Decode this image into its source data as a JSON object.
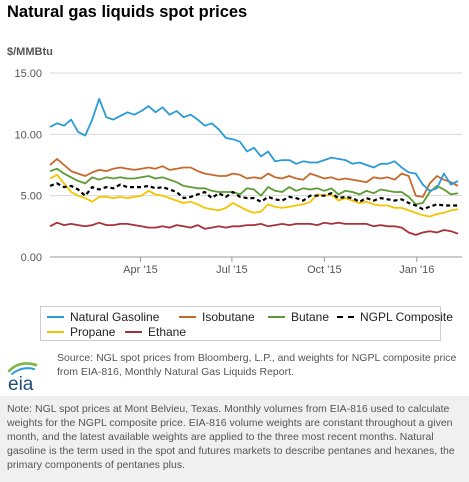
{
  "header": {
    "title": "Natural gas liquids spot prices",
    "unit": "$/MMBtu"
  },
  "source": "Source: NGL spot prices from Bloomberg, L.P., and weights for NGPL composite price from EIA-816, Monthly Natural Gas Liquids Report.",
  "note": "Note: NGL spot prices at Mont Belvieu, Texas. Monthly volumes from EIA-816 used to calculate weights for the NGPL composite price. EIA-816 volume weights are constant throughout a given month, and the latest available weights are applied to the three most recent months. Natural gasoline is the term used in the spot and futures markets to describe pentanes and hexanes, the primary components of pentanes plus.",
  "logo": {
    "text": "eia",
    "icon": "eia-logo-icon"
  },
  "colors": {
    "natural_gasoline": "#2a9bd8",
    "isobutane": "#c8692c",
    "butane": "#5d9b35",
    "ngpl_composite": "#000000",
    "propane": "#f5c400",
    "ethane": "#a63239",
    "grid": "#d9d9d9"
  },
  "chart_data": {
    "type": "line",
    "title": "Natural gas liquids spot prices",
    "ylabel": "$/MMBtu",
    "ylim": [
      0,
      15
    ],
    "yticks": [
      "0.00",
      "5.00",
      "10.00",
      "15.00"
    ],
    "xticks": [
      {
        "label": "Apr '15",
        "day": 90
      },
      {
        "label": "Jul '15",
        "day": 181
      },
      {
        "label": "Oct '15",
        "day": 273
      },
      {
        "label": "Jan '16",
        "day": 365
      }
    ],
    "xdomain": [
      0,
      410
    ],
    "grid": true,
    "legend_position": "bottom",
    "x": [
      0,
      7,
      14,
      21,
      28,
      35,
      42,
      49,
      56,
      63,
      70,
      77,
      84,
      91,
      98,
      105,
      112,
      119,
      126,
      133,
      140,
      147,
      154,
      161,
      168,
      175,
      182,
      189,
      196,
      203,
      210,
      217,
      224,
      231,
      238,
      245,
      252,
      259,
      266,
      273,
      280,
      287,
      294,
      301,
      308,
      315,
      322,
      329,
      336,
      343,
      350,
      357,
      364,
      371,
      378,
      385,
      392,
      399,
      406
    ],
    "series": [
      {
        "name": "Natural Gasoline",
        "key": "natural_gasoline",
        "dash": false,
        "values": [
          10.6,
          10.9,
          10.7,
          11.2,
          10.2,
          9.9,
          11.2,
          12.9,
          11.4,
          11.2,
          11.5,
          11.8,
          11.6,
          11.9,
          12.3,
          11.8,
          12.2,
          11.6,
          11.9,
          11.4,
          11.6,
          11.2,
          10.7,
          10.9,
          10.4,
          9.7,
          9.6,
          9.4,
          8.6,
          8.9,
          8.2,
          8.6,
          7.8,
          7.9,
          7.9,
          7.6,
          7.8,
          7.7,
          7.7,
          7.9,
          8.1,
          8.0,
          7.9,
          7.6,
          7.7,
          7.5,
          7.3,
          7.6,
          7.6,
          7.8,
          7.3,
          6.9,
          6.8,
          5.9,
          5.4,
          5.6,
          6.8,
          5.9,
          6.2
        ]
      },
      {
        "name": "Isobutane",
        "key": "isobutane",
        "dash": false,
        "values": [
          7.5,
          8.0,
          7.5,
          7.0,
          6.8,
          6.6,
          6.9,
          7.1,
          7.0,
          7.2,
          7.3,
          7.2,
          7.1,
          7.2,
          7.3,
          7.2,
          7.4,
          7.1,
          7.2,
          7.3,
          7.3,
          7.0,
          6.8,
          6.7,
          6.6,
          6.6,
          6.8,
          6.7,
          6.4,
          6.5,
          6.4,
          6.8,
          6.5,
          6.4,
          6.6,
          6.4,
          6.3,
          6.8,
          6.6,
          6.4,
          6.5,
          6.3,
          6.4,
          6.3,
          6.2,
          6.1,
          6.5,
          6.4,
          6.5,
          6.3,
          6.8,
          6.6,
          5.0,
          4.9,
          6.0,
          6.6,
          6.3,
          6.1,
          5.8
        ]
      },
      {
        "name": "Butane",
        "key": "butane",
        "dash": false,
        "values": [
          7.0,
          7.2,
          6.8,
          6.5,
          6.2,
          6.0,
          6.5,
          6.3,
          6.5,
          6.4,
          6.5,
          6.4,
          6.4,
          6.5,
          6.6,
          6.4,
          6.5,
          6.3,
          6.1,
          5.8,
          5.7,
          5.6,
          5.6,
          5.4,
          5.3,
          5.3,
          5.3,
          5.1,
          5.6,
          5.5,
          5.0,
          5.7,
          5.4,
          5.3,
          5.7,
          5.4,
          5.6,
          5.5,
          5.6,
          5.4,
          5.6,
          5.1,
          5.4,
          5.3,
          5.1,
          5.4,
          5.2,
          5.5,
          5.4,
          5.3,
          5.3,
          4.9,
          4.3,
          4.4,
          5.3,
          5.8,
          5.5,
          5.1,
          5.2
        ]
      },
      {
        "name": "NGPL Composite",
        "key": "ngpl_composite",
        "dash": true,
        "values": [
          5.8,
          6.0,
          5.7,
          5.8,
          5.5,
          5.0,
          5.7,
          5.5,
          5.7,
          5.6,
          5.9,
          5.7,
          5.7,
          5.7,
          5.8,
          5.6,
          5.7,
          5.5,
          5.3,
          4.8,
          4.9,
          5.1,
          5.3,
          4.8,
          5.2,
          4.9,
          5.3,
          4.9,
          4.8,
          4.8,
          4.5,
          4.9,
          4.7,
          4.6,
          4.9,
          4.8,
          4.6,
          5.0,
          5.0,
          5.0,
          5.2,
          4.8,
          4.9,
          4.8,
          4.5,
          4.8,
          4.6,
          4.8,
          4.7,
          4.6,
          4.7,
          4.4,
          4.2,
          3.9,
          4.1,
          4.3,
          4.2,
          4.2,
          4.2
        ]
      },
      {
        "name": "Propane",
        "key": "propane",
        "dash": false,
        "values": [
          6.4,
          6.7,
          6.0,
          5.3,
          5.0,
          4.8,
          4.5,
          4.9,
          4.9,
          4.8,
          4.9,
          4.8,
          4.9,
          5.0,
          5.4,
          5.1,
          5.0,
          4.8,
          4.6,
          4.4,
          4.5,
          4.3,
          4.0,
          3.9,
          3.8,
          4.0,
          4.4,
          4.1,
          3.8,
          3.6,
          3.7,
          4.3,
          4.1,
          4.0,
          4.1,
          4.2,
          4.3,
          4.5,
          5.1,
          5.0,
          5.1,
          4.6,
          4.8,
          4.6,
          4.4,
          4.5,
          4.3,
          4.2,
          4.2,
          4.0,
          4.0,
          3.8,
          3.6,
          3.4,
          3.3,
          3.5,
          3.6,
          3.8,
          3.9
        ]
      },
      {
        "name": "Ethane",
        "key": "ethane",
        "dash": false,
        "values": [
          2.5,
          2.8,
          2.6,
          2.7,
          2.6,
          2.5,
          2.6,
          2.8,
          2.6,
          2.6,
          2.7,
          2.7,
          2.6,
          2.5,
          2.4,
          2.4,
          2.5,
          2.4,
          2.6,
          2.5,
          2.4,
          2.6,
          2.3,
          2.4,
          2.5,
          2.4,
          2.5,
          2.5,
          2.6,
          2.6,
          2.7,
          2.5,
          2.6,
          2.7,
          2.6,
          2.7,
          2.7,
          2.7,
          2.6,
          2.8,
          2.7,
          2.8,
          2.7,
          2.7,
          2.7,
          2.7,
          2.5,
          2.6,
          2.5,
          2.5,
          2.4,
          2.0,
          1.8,
          2.0,
          2.1,
          2.0,
          2.2,
          2.1,
          1.9
        ]
      }
    ]
  }
}
